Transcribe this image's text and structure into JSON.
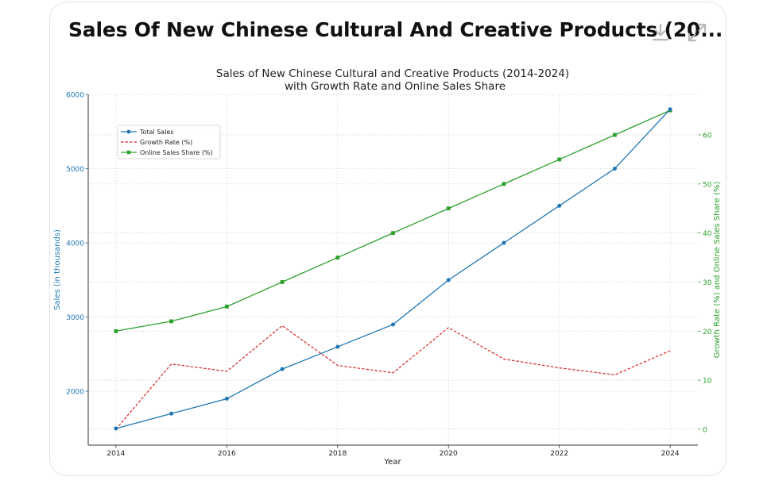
{
  "card": {
    "title": "Sales Of New Chinese Cultural And Creative Products (20...",
    "download_icon": "download-icon",
    "expand_icon": "expand-icon"
  },
  "colors": {
    "sales": "#1f77b4",
    "growth": "#d62728",
    "online": "#2ca02c",
    "grid": "#d9d9d9",
    "axis": "#333333"
  },
  "chart_data": {
    "type": "line",
    "title_line1": "Sales of New Chinese Cultural and Creative Products (2014-2024)",
    "title_line2": "with Growth Rate and Online Sales Share",
    "xlabel": "Year",
    "ylabel_left": "Sales (in thousands)",
    "ylabel_right": "Growth Rate (%) and Online Sales Share (%)",
    "x": [
      2014,
      2015,
      2016,
      2017,
      2018,
      2019,
      2020,
      2021,
      2022,
      2023,
      2024
    ],
    "x_ticks": [
      "2014",
      "2016",
      "2018",
      "2020",
      "2022",
      "2024"
    ],
    "x_tick_values": [
      2014,
      2016,
      2018,
      2020,
      2022,
      2024
    ],
    "xlim": [
      2013.5,
      2024.5
    ],
    "y_left_ticks": [
      "2000",
      "3000",
      "4000",
      "5000",
      "6000"
    ],
    "y_left_tick_values": [
      2000,
      3000,
      4000,
      5000,
      6000
    ],
    "ylim_left": [
      1275,
      6000
    ],
    "y_right_ticks": [
      "0",
      "10",
      "20",
      "30",
      "40",
      "50",
      "60"
    ],
    "y_right_tick_values": [
      0,
      10,
      20,
      30,
      40,
      50,
      60
    ],
    "ylim_right": [
      -3.25,
      68.25
    ],
    "legend_position": "upper-left",
    "series": [
      {
        "name": "Total Sales",
        "axis": "left",
        "style": "solid-circle",
        "values": [
          1500,
          1700,
          1900,
          2300,
          2600,
          2900,
          3500,
          4000,
          4500,
          5000,
          5800
        ]
      },
      {
        "name": "Growth Rate (%)",
        "axis": "right",
        "style": "dashed",
        "values": [
          0,
          13.3,
          11.8,
          21.1,
          13.0,
          11.5,
          20.7,
          14.3,
          12.5,
          11.1,
          16.0
        ]
      },
      {
        "name": "Online Sales Share (%)",
        "axis": "right",
        "style": "solid-square",
        "values": [
          20,
          22,
          25,
          30,
          35,
          40,
          45,
          50,
          55,
          60,
          65
        ]
      }
    ]
  }
}
